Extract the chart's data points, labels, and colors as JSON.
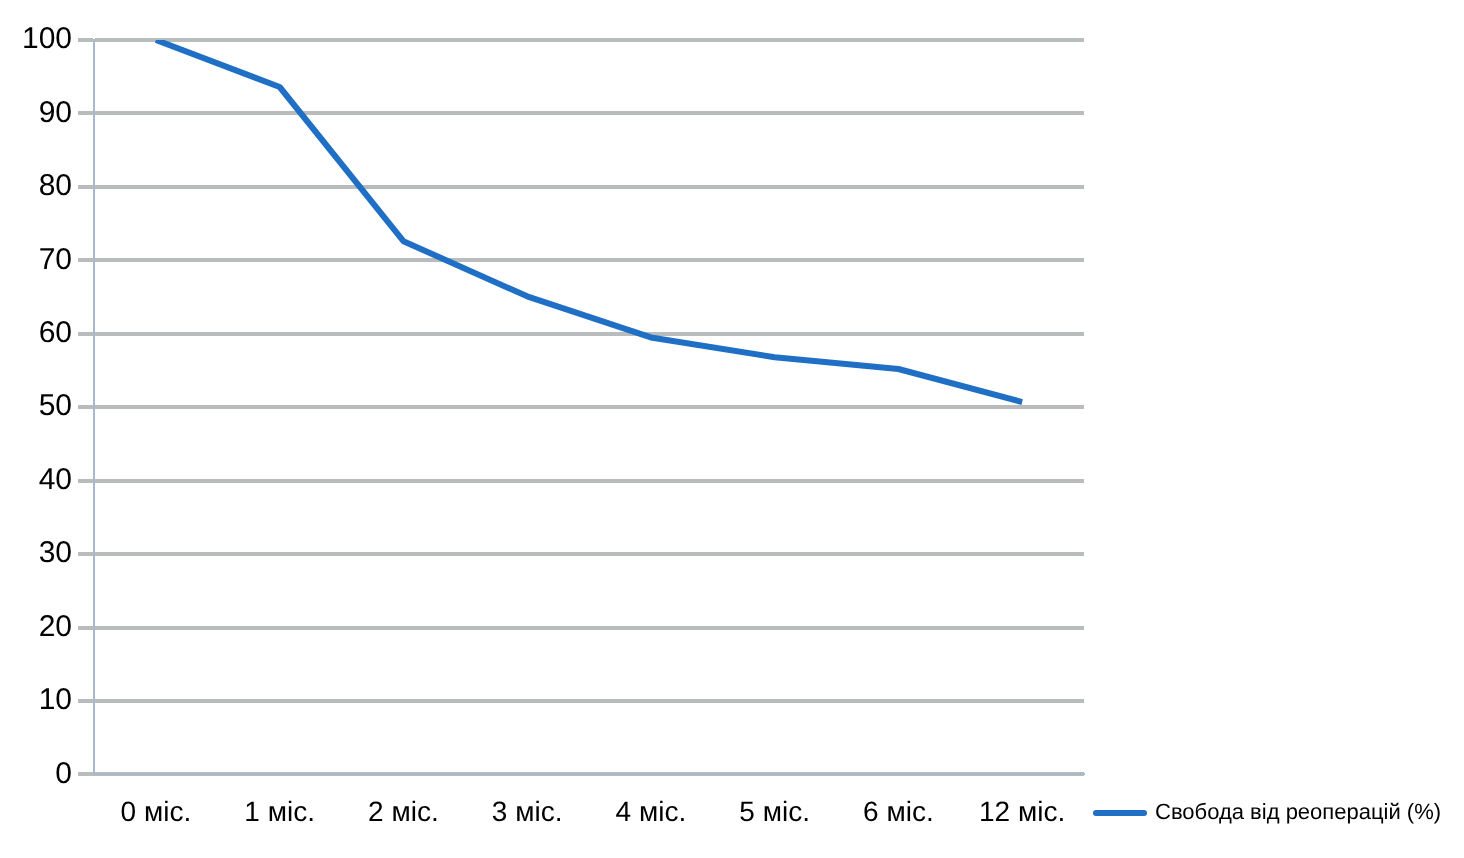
{
  "chart_data": {
    "type": "line",
    "categories": [
      "0 міс.",
      "1 міс.",
      "2 міс.",
      "3 міс.",
      "4 міс.",
      "5 міс.",
      "6 міс.",
      "12 міс."
    ],
    "series": [
      {
        "name": "Свобода від реоперацій (%)",
        "color": "#1f6fc5",
        "values": [
          100,
          93.6,
          72.6,
          65.1,
          59.5,
          56.8,
          55.2,
          50.7
        ]
      }
    ],
    "ylim": [
      0,
      100
    ],
    "yticks": [
      0,
      10,
      20,
      30,
      40,
      50,
      60,
      70,
      80,
      90,
      100
    ],
    "grid": "y",
    "legend": "right",
    "marker": "none",
    "line_style": "solid"
  }
}
